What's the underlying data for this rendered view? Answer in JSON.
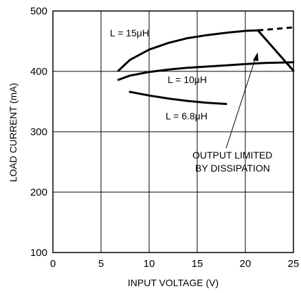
{
  "chart_data": {
    "type": "line",
    "title": "",
    "xlabel": "INPUT VOLTAGE (V)",
    "ylabel": "LOAD CURRENT (mA)",
    "xlim": [
      0,
      25
    ],
    "ylim": [
      100,
      500
    ],
    "xticks": [
      0,
      5,
      10,
      15,
      20,
      25
    ],
    "yticks": [
      100,
      200,
      300,
      400,
      500
    ],
    "grid": true,
    "series": [
      {
        "name": "L = 15μH",
        "x": [
          6.8,
          8,
          10,
          12,
          14,
          16,
          18,
          20,
          21.3
        ],
        "y": [
          401,
          419,
          436,
          447,
          455,
          460,
          464,
          467,
          468
        ],
        "dashed_x": [
          21.3,
          23,
          25
        ],
        "dashed_y": [
          468,
          470,
          473
        ]
      },
      {
        "name": "L = 10μH",
        "x": [
          6.8,
          8,
          10,
          12,
          14,
          16,
          18,
          20,
          22,
          25
        ],
        "y": [
          386,
          393,
          399,
          403,
          406,
          408,
          410,
          412,
          414,
          415
        ]
      },
      {
        "name": "L = 6.8μH",
        "x": [
          8,
          10,
          12,
          14,
          16,
          18
        ],
        "y": [
          366,
          360,
          355,
          351,
          348,
          346
        ]
      },
      {
        "name": "OUTPUT LIMITED BY DISSIPATION",
        "x": [
          21.3,
          25
        ],
        "y": [
          468,
          401
        ]
      }
    ],
    "annotations": [
      {
        "text": "OUTPUT LIMITED",
        "line": 1
      },
      {
        "text": "BY DISSIPATION",
        "line": 2
      }
    ]
  }
}
